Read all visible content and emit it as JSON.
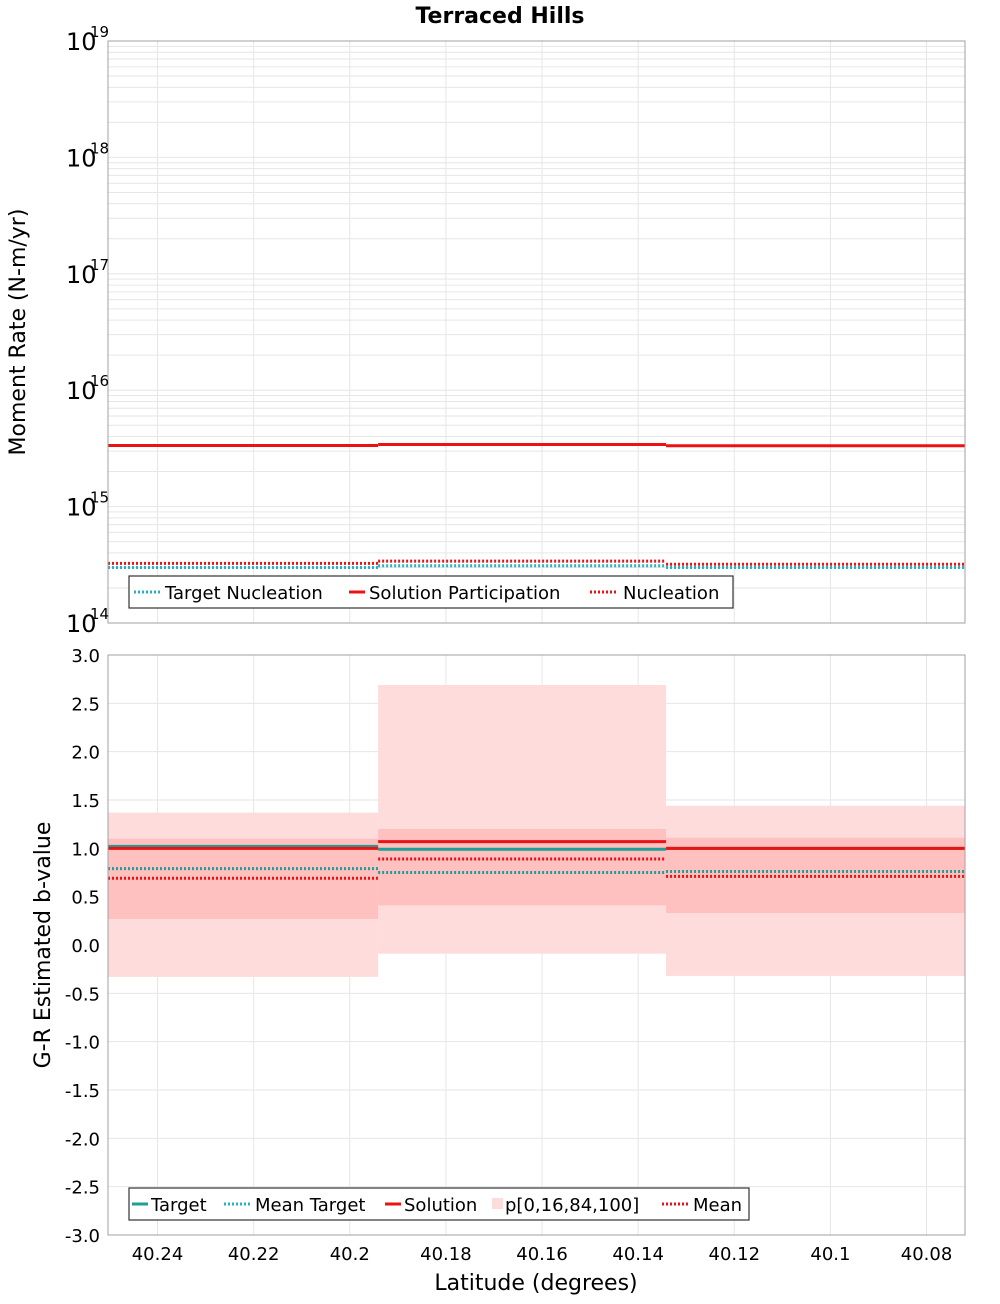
{
  "colors": {
    "target": "#1f9e96",
    "target_nucleation": "#25b2c2",
    "solution": "#ee1111",
    "band_outer": "#ffdcdc",
    "band_inner": "#ffc0c0",
    "grid": "#e6e6e6",
    "frame": "#a0a0a0"
  },
  "chart_data": [
    {
      "id": "moment-rate",
      "type": "line",
      "title": "Terraced Hills",
      "xlabel": "Latitude (degrees)",
      "ylabel": "Moment Rate (N-m/yr)",
      "yscale": "log",
      "xlim": [
        40.2503,
        40.072
      ],
      "ylim": [
        100000000000000.0,
        1e+19
      ],
      "y_ticks": [
        {
          "base": "10",
          "exp": "14",
          "value": 100000000000000.0
        },
        {
          "base": "10",
          "exp": "15",
          "value": 1000000000000000.0
        },
        {
          "base": "10",
          "exp": "16",
          "value": 1e+16
        },
        {
          "base": "10",
          "exp": "17",
          "value": 1e+17
        },
        {
          "base": "10",
          "exp": "18",
          "value": 1e+18
        },
        {
          "base": "10",
          "exp": "19",
          "value": 1e+19
        }
      ],
      "x_tick_values": [
        40.24,
        40.22,
        40.2,
        40.18,
        40.16,
        40.14,
        40.12,
        40.1,
        40.08
      ],
      "segment_edges": [
        40.2503,
        40.1941,
        40.1342,
        40.072
      ],
      "series": [
        {
          "name": "Target Nucleation",
          "style": "dotted",
          "color_key": "target_nucleation",
          "values": [
            300000000000000.0,
            310000000000000.0,
            300000000000000.0
          ]
        },
        {
          "name": "Solution Participation",
          "style": "solid",
          "color_key": "solution",
          "values": [
            3350000000000000.0,
            3420000000000000.0,
            3330000000000000.0
          ]
        },
        {
          "name": "Nucleation",
          "style": "dotted",
          "color_key": "solution",
          "values": [
            325000000000000.0,
            340000000000000.0,
            320000000000000.0
          ]
        }
      ],
      "legend": [
        {
          "label": "Target Nucleation",
          "symbol": "dotted",
          "color_key": "target_nucleation"
        },
        {
          "label": "Solution Participation",
          "symbol": "solid",
          "color_key": "solution"
        },
        {
          "label": "Nucleation",
          "symbol": "dotted",
          "color_key": "solution"
        }
      ],
      "legend_position": "bottom-left"
    },
    {
      "id": "b-value",
      "type": "line",
      "xlabel": "Latitude (degrees)",
      "ylabel": "G-R Estimated b-value",
      "yscale": "linear",
      "xlim": [
        40.2503,
        40.072
      ],
      "ylim": [
        -3.0,
        3.0
      ],
      "y_ticks": [
        "-3.0",
        "-2.5",
        "-2.0",
        "-1.5",
        "-1.0",
        "-0.5",
        "0.0",
        "0.5",
        "1.0",
        "1.5",
        "2.0",
        "2.5",
        "3.0"
      ],
      "x_ticks": [
        "40.24",
        "40.22",
        "40.2",
        "40.18",
        "40.16",
        "40.14",
        "40.12",
        "40.1",
        "40.08"
      ],
      "x_tick_values": [
        40.24,
        40.22,
        40.2,
        40.18,
        40.16,
        40.14,
        40.12,
        40.1,
        40.08
      ],
      "segment_edges": [
        40.2503,
        40.1941,
        40.1342,
        40.072
      ],
      "bands": [
        {
          "name": "p[0,100]",
          "lower": [
            -0.33,
            -0.09,
            -0.32
          ],
          "upper": [
            1.37,
            2.69,
            1.44
          ]
        },
        {
          "name": "p[16,84]",
          "lower": [
            0.27,
            0.41,
            0.33
          ],
          "upper": [
            1.1,
            1.2,
            1.11
          ]
        }
      ],
      "series": [
        {
          "name": "Target",
          "style": "solid",
          "color_key": "target",
          "values": [
            1.02,
            0.99,
            1.0
          ]
        },
        {
          "name": "Mean Target",
          "style": "dotted",
          "color_key": "target",
          "values": [
            0.79,
            0.75,
            0.76
          ]
        },
        {
          "name": "Solution",
          "style": "solid",
          "color_key": "solution",
          "values": [
            1.0,
            1.07,
            1.0
          ]
        },
        {
          "name": "Mean",
          "style": "dotted",
          "color_key": "solution",
          "values": [
            0.69,
            0.89,
            0.71
          ]
        }
      ],
      "legend": [
        {
          "label": "Target",
          "symbol": "solid",
          "color_key": "target"
        },
        {
          "label": "Mean Target",
          "symbol": "dotted",
          "color_key": "target_nucleation"
        },
        {
          "label": "Solution",
          "symbol": "solid",
          "color_key": "solution"
        },
        {
          "label": "p[0,16,84,100]",
          "symbol": "box",
          "color_key": "band_outer"
        },
        {
          "label": "Mean",
          "symbol": "dotted",
          "color_key": "solution"
        }
      ],
      "legend_position": "bottom-left"
    }
  ]
}
